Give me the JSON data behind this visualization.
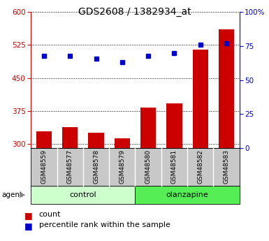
{
  "title": "GDS2608 / 1382934_at",
  "samples": [
    "GSM48559",
    "GSM48577",
    "GSM48578",
    "GSM48579",
    "GSM48580",
    "GSM48581",
    "GSM48582",
    "GSM48583"
  ],
  "counts": [
    328,
    338,
    325,
    312,
    382,
    392,
    515,
    560
  ],
  "percentile_ranks": [
    68,
    68,
    66,
    63,
    68,
    70,
    76,
    77
  ],
  "groups": [
    "control",
    "control",
    "control",
    "control",
    "olanzapine",
    "olanzapine",
    "olanzapine",
    "olanzapine"
  ],
  "bar_color": "#cc0000",
  "dot_color": "#0000cc",
  "ylim_left": [
    290,
    600
  ],
  "yticks_left": [
    300,
    375,
    450,
    525,
    600
  ],
  "ylim_right": [
    0,
    100
  ],
  "yticks_right": [
    0,
    25,
    50,
    75,
    100
  ],
  "control_color": "#ccffcc",
  "olanzapine_color": "#55ee55",
  "tick_bg_color": "#c8c8c8",
  "title_fontsize": 10,
  "legend_fontsize": 8,
  "left_axis_color": "#cc0000",
  "right_axis_color": "#0000cc",
  "bar_width": 0.6,
  "xlim": [
    -0.5,
    7.5
  ]
}
